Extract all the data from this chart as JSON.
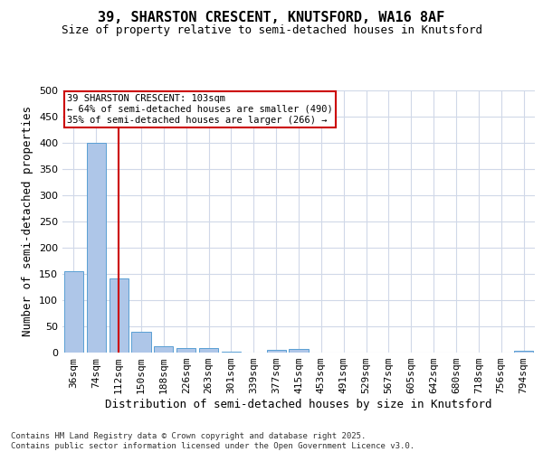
{
  "title_line1": "39, SHARSTON CRESCENT, KNUTSFORD, WA16 8AF",
  "title_line2": "Size of property relative to semi-detached houses in Knutsford",
  "xlabel": "Distribution of semi-detached houses by size in Knutsford",
  "ylabel": "Number of semi-detached properties",
  "categories": [
    "36sqm",
    "74sqm",
    "112sqm",
    "150sqm",
    "188sqm",
    "226sqm",
    "263sqm",
    "301sqm",
    "339sqm",
    "377sqm",
    "415sqm",
    "453sqm",
    "491sqm",
    "529sqm",
    "567sqm",
    "605sqm",
    "642sqm",
    "680sqm",
    "718sqm",
    "756sqm",
    "794sqm"
  ],
  "values": [
    155,
    400,
    142,
    40,
    12,
    9,
    8,
    2,
    0,
    6,
    7,
    0,
    0,
    0,
    0,
    0,
    0,
    0,
    0,
    0,
    4
  ],
  "bar_color": "#aec6e8",
  "bar_edge_color": "#5a9fd4",
  "red_line_index": 2,
  "annotation_title": "39 SHARSTON CRESCENT: 103sqm",
  "annotation_line2": "← 64% of semi-detached houses are smaller (490)",
  "annotation_line3": "35% of semi-detached houses are larger (266) →",
  "annotation_box_color": "#ffffff",
  "annotation_box_edge": "#cc0000",
  "red_line_color": "#cc0000",
  "footer_line1": "Contains HM Land Registry data © Crown copyright and database right 2025.",
  "footer_line2": "Contains public sector information licensed under the Open Government Licence v3.0.",
  "ylim": [
    0,
    500
  ],
  "yticks": [
    0,
    50,
    100,
    150,
    200,
    250,
    300,
    350,
    400,
    450,
    500
  ],
  "background_color": "#ffffff",
  "grid_color": "#d0d8e8",
  "title_fontsize": 11,
  "subtitle_fontsize": 9,
  "ylabel_fontsize": 9,
  "xlabel_fontsize": 9,
  "tick_fontsize": 8,
  "annotation_fontsize": 7.5,
  "footer_fontsize": 6.5
}
